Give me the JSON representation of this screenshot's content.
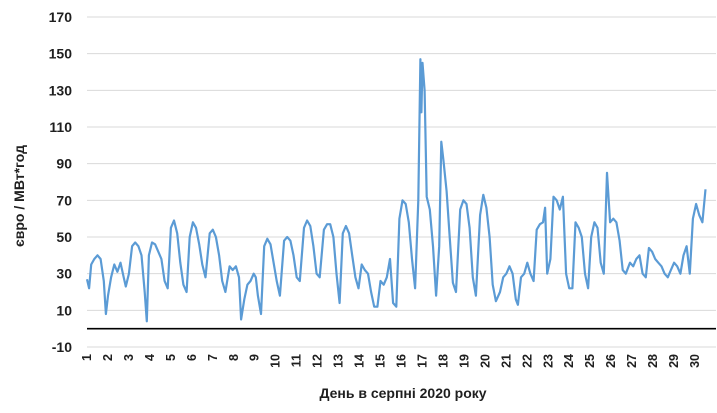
{
  "chart_data": {
    "type": "line",
    "xlabel": "День в серпні 2020 року",
    "ylabel": "євро / МВт*год",
    "ylim": [
      -10,
      170
    ],
    "yticks": [
      -10,
      10,
      30,
      50,
      70,
      90,
      110,
      130,
      150,
      170
    ],
    "xticks": [
      "1",
      "2",
      "3",
      "4",
      "5",
      "6",
      "7",
      "8",
      "9",
      "10",
      "11",
      "12",
      "13",
      "14",
      "15",
      "16",
      "17",
      "18",
      "19",
      "20",
      "21",
      "22",
      "23",
      "24",
      "25",
      "26",
      "27",
      "28",
      "29",
      "30"
    ],
    "grid": true,
    "x_unit": "day",
    "series": [
      {
        "color": "#5b9bd5",
        "points": [
          [
            1.0,
            27
          ],
          [
            1.1,
            22
          ],
          [
            1.2,
            35
          ],
          [
            1.35,
            38
          ],
          [
            1.5,
            40
          ],
          [
            1.65,
            38
          ],
          [
            1.8,
            26
          ],
          [
            1.9,
            8
          ],
          [
            2.0,
            18
          ],
          [
            2.15,
            28
          ],
          [
            2.3,
            35
          ],
          [
            2.45,
            31
          ],
          [
            2.6,
            36
          ],
          [
            2.75,
            28
          ],
          [
            2.85,
            23
          ],
          [
            3.0,
            30
          ],
          [
            3.15,
            45
          ],
          [
            3.3,
            47
          ],
          [
            3.45,
            45
          ],
          [
            3.6,
            40
          ],
          [
            3.75,
            20
          ],
          [
            3.85,
            4
          ],
          [
            3.95,
            40
          ],
          [
            4.1,
            47
          ],
          [
            4.25,
            46
          ],
          [
            4.4,
            42
          ],
          [
            4.55,
            38
          ],
          [
            4.7,
            26
          ],
          [
            4.85,
            22
          ],
          [
            5.0,
            55
          ],
          [
            5.15,
            59
          ],
          [
            5.3,
            52
          ],
          [
            5.45,
            36
          ],
          [
            5.6,
            24
          ],
          [
            5.75,
            20
          ],
          [
            5.9,
            50
          ],
          [
            6.05,
            58
          ],
          [
            6.2,
            55
          ],
          [
            6.35,
            46
          ],
          [
            6.5,
            35
          ],
          [
            6.65,
            28
          ],
          [
            6.85,
            52
          ],
          [
            7.0,
            54
          ],
          [
            7.15,
            50
          ],
          [
            7.3,
            40
          ],
          [
            7.45,
            26
          ],
          [
            7.6,
            20
          ],
          [
            7.8,
            34
          ],
          [
            7.95,
            32
          ],
          [
            8.1,
            34
          ],
          [
            8.25,
            28
          ],
          [
            8.35,
            5
          ],
          [
            8.5,
            16
          ],
          [
            8.65,
            24
          ],
          [
            8.8,
            26
          ],
          [
            8.95,
            30
          ],
          [
            9.05,
            28
          ],
          [
            9.15,
            18
          ],
          [
            9.3,
            8
          ],
          [
            9.45,
            45
          ],
          [
            9.6,
            49
          ],
          [
            9.75,
            46
          ],
          [
            9.9,
            36
          ],
          [
            10.05,
            26
          ],
          [
            10.2,
            18
          ],
          [
            10.4,
            48
          ],
          [
            10.55,
            50
          ],
          [
            10.7,
            48
          ],
          [
            10.85,
            40
          ],
          [
            11.0,
            28
          ],
          [
            11.15,
            26
          ],
          [
            11.35,
            55
          ],
          [
            11.5,
            59
          ],
          [
            11.65,
            56
          ],
          [
            11.8,
            45
          ],
          [
            11.95,
            30
          ],
          [
            12.1,
            28
          ],
          [
            12.3,
            54
          ],
          [
            12.45,
            57
          ],
          [
            12.6,
            57
          ],
          [
            12.75,
            50
          ],
          [
            12.9,
            30
          ],
          [
            13.05,
            14
          ],
          [
            13.2,
            52
          ],
          [
            13.35,
            56
          ],
          [
            13.5,
            52
          ],
          [
            13.65,
            40
          ],
          [
            13.8,
            28
          ],
          [
            13.95,
            22
          ],
          [
            14.1,
            35
          ],
          [
            14.25,
            32
          ],
          [
            14.4,
            30
          ],
          [
            14.55,
            20
          ],
          [
            14.7,
            12
          ],
          [
            14.85,
            12
          ],
          [
            15.0,
            26
          ],
          [
            15.15,
            24
          ],
          [
            15.3,
            28
          ],
          [
            15.45,
            38
          ],
          [
            15.6,
            14
          ],
          [
            15.75,
            12
          ],
          [
            15.9,
            60
          ],
          [
            16.05,
            70
          ],
          [
            16.2,
            68
          ],
          [
            16.35,
            58
          ],
          [
            16.5,
            38
          ],
          [
            16.65,
            22
          ],
          [
            16.8,
            70
          ],
          [
            16.9,
            147
          ],
          [
            16.95,
            118
          ],
          [
            17.0,
            145
          ],
          [
            17.1,
            130
          ],
          [
            17.2,
            72
          ],
          [
            17.35,
            65
          ],
          [
            17.5,
            45
          ],
          [
            17.65,
            18
          ],
          [
            17.8,
            45
          ],
          [
            17.9,
            102
          ],
          [
            18.0,
            92
          ],
          [
            18.15,
            75
          ],
          [
            18.3,
            50
          ],
          [
            18.45,
            25
          ],
          [
            18.6,
            20
          ],
          [
            18.8,
            65
          ],
          [
            18.95,
            70
          ],
          [
            19.1,
            68
          ],
          [
            19.25,
            55
          ],
          [
            19.4,
            28
          ],
          [
            19.55,
            18
          ],
          [
            19.75,
            62
          ],
          [
            19.9,
            73
          ],
          [
            20.05,
            66
          ],
          [
            20.2,
            50
          ],
          [
            20.35,
            24
          ],
          [
            20.5,
            15
          ],
          [
            20.7,
            20
          ],
          [
            20.85,
            28
          ],
          [
            21.0,
            30
          ],
          [
            21.15,
            34
          ],
          [
            21.3,
            30
          ],
          [
            21.45,
            16
          ],
          [
            21.55,
            13
          ],
          [
            21.7,
            28
          ],
          [
            21.85,
            30
          ],
          [
            22.0,
            36
          ],
          [
            22.15,
            30
          ],
          [
            22.3,
            26
          ],
          [
            22.45,
            54
          ],
          [
            22.6,
            57
          ],
          [
            22.75,
            58
          ],
          [
            22.85,
            66
          ],
          [
            22.95,
            30
          ],
          [
            23.1,
            38
          ],
          [
            23.25,
            72
          ],
          [
            23.4,
            70
          ],
          [
            23.55,
            65
          ],
          [
            23.7,
            72
          ],
          [
            23.85,
            30
          ],
          [
            24.0,
            22
          ],
          [
            24.15,
            22
          ],
          [
            24.3,
            58
          ],
          [
            24.45,
            55
          ],
          [
            24.6,
            50
          ],
          [
            24.75,
            30
          ],
          [
            24.9,
            22
          ],
          [
            25.05,
            50
          ],
          [
            25.2,
            58
          ],
          [
            25.35,
            55
          ],
          [
            25.5,
            36
          ],
          [
            25.65,
            30
          ],
          [
            25.8,
            85
          ],
          [
            25.95,
            58
          ],
          [
            26.1,
            60
          ],
          [
            26.25,
            58
          ],
          [
            26.4,
            48
          ],
          [
            26.55,
            32
          ],
          [
            26.7,
            30
          ],
          [
            26.9,
            36
          ],
          [
            27.05,
            34
          ],
          [
            27.2,
            38
          ],
          [
            27.35,
            40
          ],
          [
            27.5,
            30
          ],
          [
            27.65,
            28
          ],
          [
            27.8,
            44
          ],
          [
            27.95,
            42
          ],
          [
            28.1,
            38
          ],
          [
            28.25,
            36
          ],
          [
            28.4,
            34
          ],
          [
            28.55,
            30
          ],
          [
            28.7,
            28
          ],
          [
            28.85,
            32
          ],
          [
            29.0,
            36
          ],
          [
            29.15,
            34
          ],
          [
            29.3,
            30
          ],
          [
            29.45,
            40
          ],
          [
            29.6,
            45
          ],
          [
            29.75,
            30
          ],
          [
            29.9,
            60
          ],
          [
            30.05,
            68
          ],
          [
            30.2,
            62
          ],
          [
            30.35,
            58
          ],
          [
            30.5,
            76
          ]
        ]
      }
    ]
  }
}
